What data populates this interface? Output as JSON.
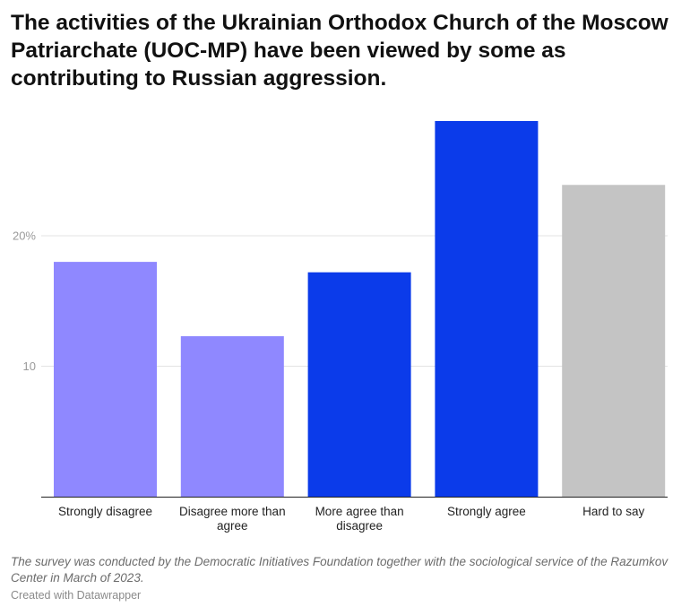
{
  "chart_data": {
    "type": "bar",
    "title": "The activities of the Ukrainian Orthodox Church of the Moscow Patriarchate (UOC-MP) have been viewed by some as contributing to Russian aggression.",
    "categories": [
      "Strongly disagree",
      "Disagree more than agree",
      "More agree than disagree",
      "Strongly agree",
      "Hard to say"
    ],
    "category_lines": [
      [
        "Strongly disagree"
      ],
      [
        "Disagree more than",
        "agree"
      ],
      [
        "More agree than",
        "disagree"
      ],
      [
        "Strongly agree"
      ],
      [
        "Hard to say"
      ]
    ],
    "values": [
      18,
      12.3,
      17.2,
      28.8,
      23.9
    ],
    "colors": [
      "#8f88ff",
      "#8f88ff",
      "#0b3bea",
      "#0b3bea",
      "#c4c4c4"
    ],
    "ylim": [
      0,
      30
    ],
    "yticks": [
      10,
      20
    ],
    "ytick_labels": [
      "10",
      "20%"
    ],
    "grid": true,
    "xlabel": "",
    "ylabel": ""
  },
  "notes": "The survey was conducted by the Democratic Initiatives Foundation together with the sociological service of the Razumkov Center in March of 2023.",
  "credit": "Created with Datawrapper"
}
